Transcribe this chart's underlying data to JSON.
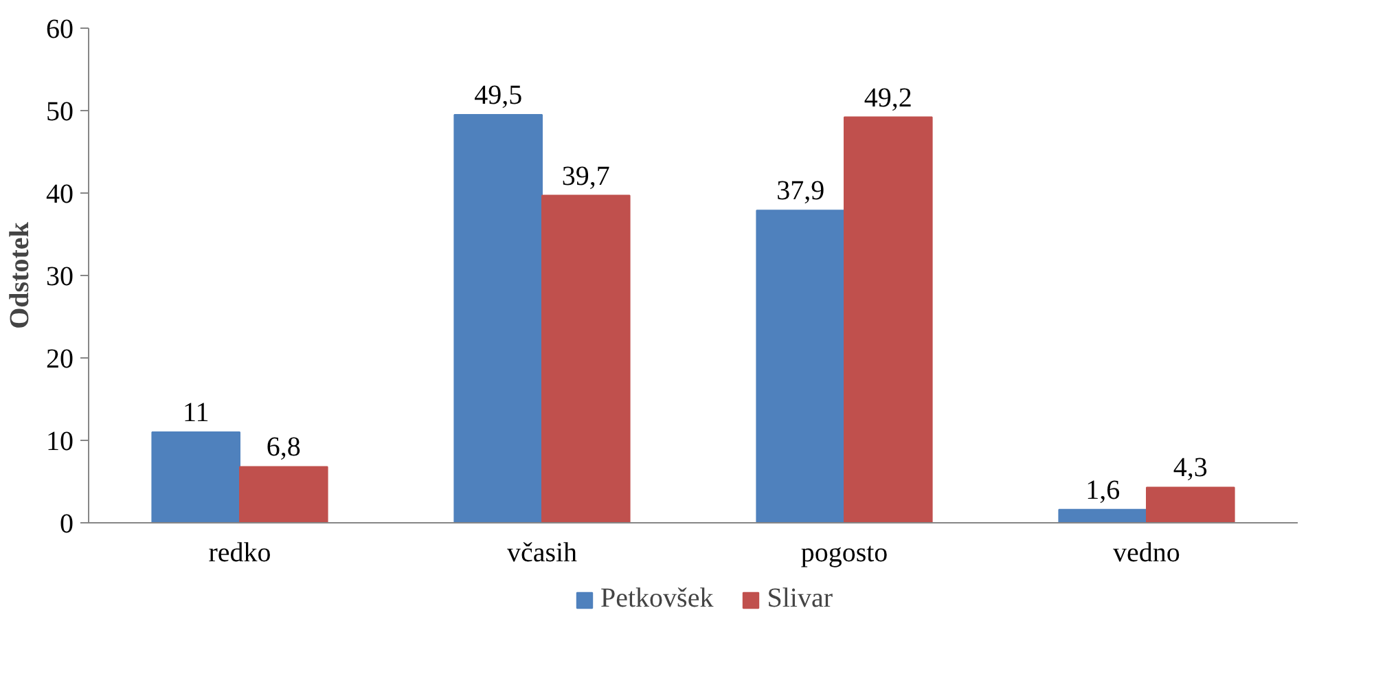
{
  "chart_data": {
    "type": "bar",
    "ylabel": "Odstotek",
    "categories": [
      "redko",
      "včasih",
      "pogosto",
      "vedno"
    ],
    "series": [
      {
        "name": "Petkovšek",
        "color": "#4f81bd",
        "values": [
          11,
          49.5,
          37.9,
          1.6
        ],
        "value_labels": [
          "11",
          "49,5",
          "37,9",
          "1,6"
        ]
      },
      {
        "name": "Slivar",
        "color": "#c0504d",
        "values": [
          6.8,
          39.7,
          49.2,
          4.3
        ],
        "value_labels": [
          "6,8",
          "39,7",
          "49,2",
          "4,3"
        ]
      }
    ],
    "ylim": [
      0,
      60
    ],
    "yticks": [
      0,
      10,
      20,
      30,
      40,
      50,
      60
    ],
    "grid": false,
    "legend": "bottom"
  }
}
